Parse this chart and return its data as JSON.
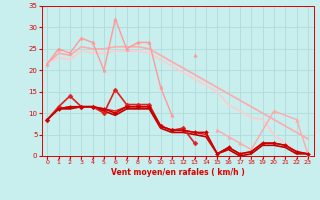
{
  "background_color": "#c8eeed",
  "grid_color": "#b0dcdc",
  "text_color": "#dd0000",
  "xlabel": "Vent moyen/en rafales ( km/h )",
  "xlim": [
    -0.5,
    23.5
  ],
  "ylim": [
    0,
    35
  ],
  "yticks": [
    0,
    5,
    10,
    15,
    20,
    25,
    30,
    35
  ],
  "xticks": [
    0,
    1,
    2,
    3,
    4,
    5,
    6,
    7,
    8,
    9,
    10,
    11,
    12,
    13,
    14,
    15,
    16,
    17,
    18,
    19,
    20,
    21,
    22,
    23
  ],
  "series": [
    {
      "color": "#ff9999",
      "marker": "^",
      "markersize": 2.5,
      "linewidth": 1.0,
      "x": [
        0,
        1,
        2,
        3,
        4,
        5,
        6,
        7,
        8,
        9,
        10,
        11
      ],
      "y": [
        21.5,
        25.0,
        24.0,
        27.5,
        26.5,
        20.0,
        32.0,
        25.0,
        26.5,
        26.5,
        16.0,
        9.5
      ]
    },
    {
      "color": "#ffaaaa",
      "marker": null,
      "markersize": 0,
      "linewidth": 1.2,
      "x": [
        0,
        1,
        2,
        3,
        4,
        5,
        6,
        7,
        8,
        9,
        10,
        11,
        12,
        13,
        14,
        15,
        16,
        17,
        18,
        19,
        20,
        21,
        22,
        23
      ],
      "y": [
        21.5,
        24.0,
        23.5,
        25.5,
        25.0,
        25.0,
        25.5,
        25.5,
        25.5,
        25.0,
        23.5,
        22.0,
        20.5,
        19.0,
        17.5,
        16.0,
        14.5,
        13.0,
        11.5,
        10.0,
        8.5,
        7.0,
        5.5,
        4.0
      ]
    },
    {
      "color": "#ffcccc",
      "marker": null,
      "markersize": 0,
      "linewidth": 1.2,
      "x": [
        0,
        1,
        2,
        3,
        4,
        5,
        6,
        7,
        8,
        9,
        10,
        11,
        12,
        13,
        14,
        15,
        16,
        17,
        18,
        19,
        20,
        21,
        22,
        23
      ],
      "y": [
        21.5,
        23.0,
        22.5,
        24.5,
        24.0,
        24.0,
        24.5,
        24.5,
        24.5,
        24.0,
        22.5,
        21.0,
        19.5,
        18.0,
        16.5,
        15.0,
        12.0,
        10.5,
        9.0,
        8.5,
        5.0,
        3.0,
        1.0,
        0.5
      ]
    },
    {
      "color": "#ff9999",
      "marker": "^",
      "markersize": 2.5,
      "linewidth": 0,
      "x": [
        13
      ],
      "y": [
        23.5
      ]
    },
    {
      "color": "#ffaaaa",
      "marker": "^",
      "markersize": 2.5,
      "linewidth": 1.0,
      "x": [
        15,
        16,
        17,
        18,
        20,
        22,
        23
      ],
      "y": [
        6.0,
        4.5,
        3.0,
        1.5,
        10.5,
        8.5,
        0.5
      ]
    },
    {
      "color": "#dd2222",
      "marker": "D",
      "markersize": 2.5,
      "linewidth": 1.2,
      "x": [
        0,
        1,
        2,
        3,
        4,
        5,
        6,
        7,
        8,
        9,
        10,
        11,
        12,
        13
      ],
      "y": [
        8.5,
        11.5,
        14.0,
        11.5,
        11.5,
        10.0,
        15.5,
        12.0,
        12.0,
        12.0,
        7.0,
        6.0,
        6.5,
        3.0
      ]
    },
    {
      "color": "#cc0000",
      "marker": "D",
      "markersize": 2.0,
      "linewidth": 1.2,
      "x": [
        0,
        1,
        2,
        3,
        4,
        5,
        6,
        7,
        8,
        9,
        10,
        11,
        12,
        13,
        14,
        15,
        16,
        17,
        18,
        19,
        20,
        21,
        22,
        23
      ],
      "y": [
        8.5,
        11.0,
        11.5,
        11.5,
        11.5,
        11.0,
        10.0,
        11.5,
        11.5,
        11.5,
        7.0,
        6.0,
        6.0,
        5.5,
        5.5,
        0.5,
        2.0,
        0.5,
        1.0,
        3.0,
        3.0,
        2.5,
        1.0,
        0.5
      ]
    },
    {
      "color": "#bb0000",
      "marker": null,
      "markersize": 0,
      "linewidth": 1.2,
      "x": [
        0,
        1,
        2,
        3,
        4,
        5,
        6,
        7,
        8,
        9,
        10,
        11,
        12,
        13,
        14,
        15,
        16,
        17,
        18,
        19,
        20,
        21,
        22,
        23
      ],
      "y": [
        8.5,
        11.0,
        11.0,
        11.5,
        11.5,
        10.5,
        9.5,
        11.0,
        11.0,
        11.0,
        6.5,
        5.5,
        5.5,
        5.0,
        4.5,
        0.5,
        1.5,
        0.0,
        0.5,
        2.5,
        2.5,
        2.0,
        0.5,
        0.5
      ]
    },
    {
      "color": "#ee1111",
      "marker": null,
      "markersize": 0,
      "linewidth": 1.0,
      "x": [
        0,
        1,
        2,
        3,
        4,
        5,
        6,
        7,
        8,
        9,
        10,
        11,
        12,
        13,
        14,
        15,
        16,
        17,
        18,
        19,
        20,
        21,
        22,
        23
      ],
      "y": [
        8.5,
        11.0,
        11.5,
        11.5,
        11.5,
        11.0,
        10.5,
        11.5,
        11.5,
        11.5,
        7.0,
        6.0,
        6.0,
        5.5,
        5.0,
        0.5,
        2.0,
        0.5,
        1.0,
        3.0,
        3.0,
        2.5,
        1.0,
        0.5
      ]
    }
  ]
}
